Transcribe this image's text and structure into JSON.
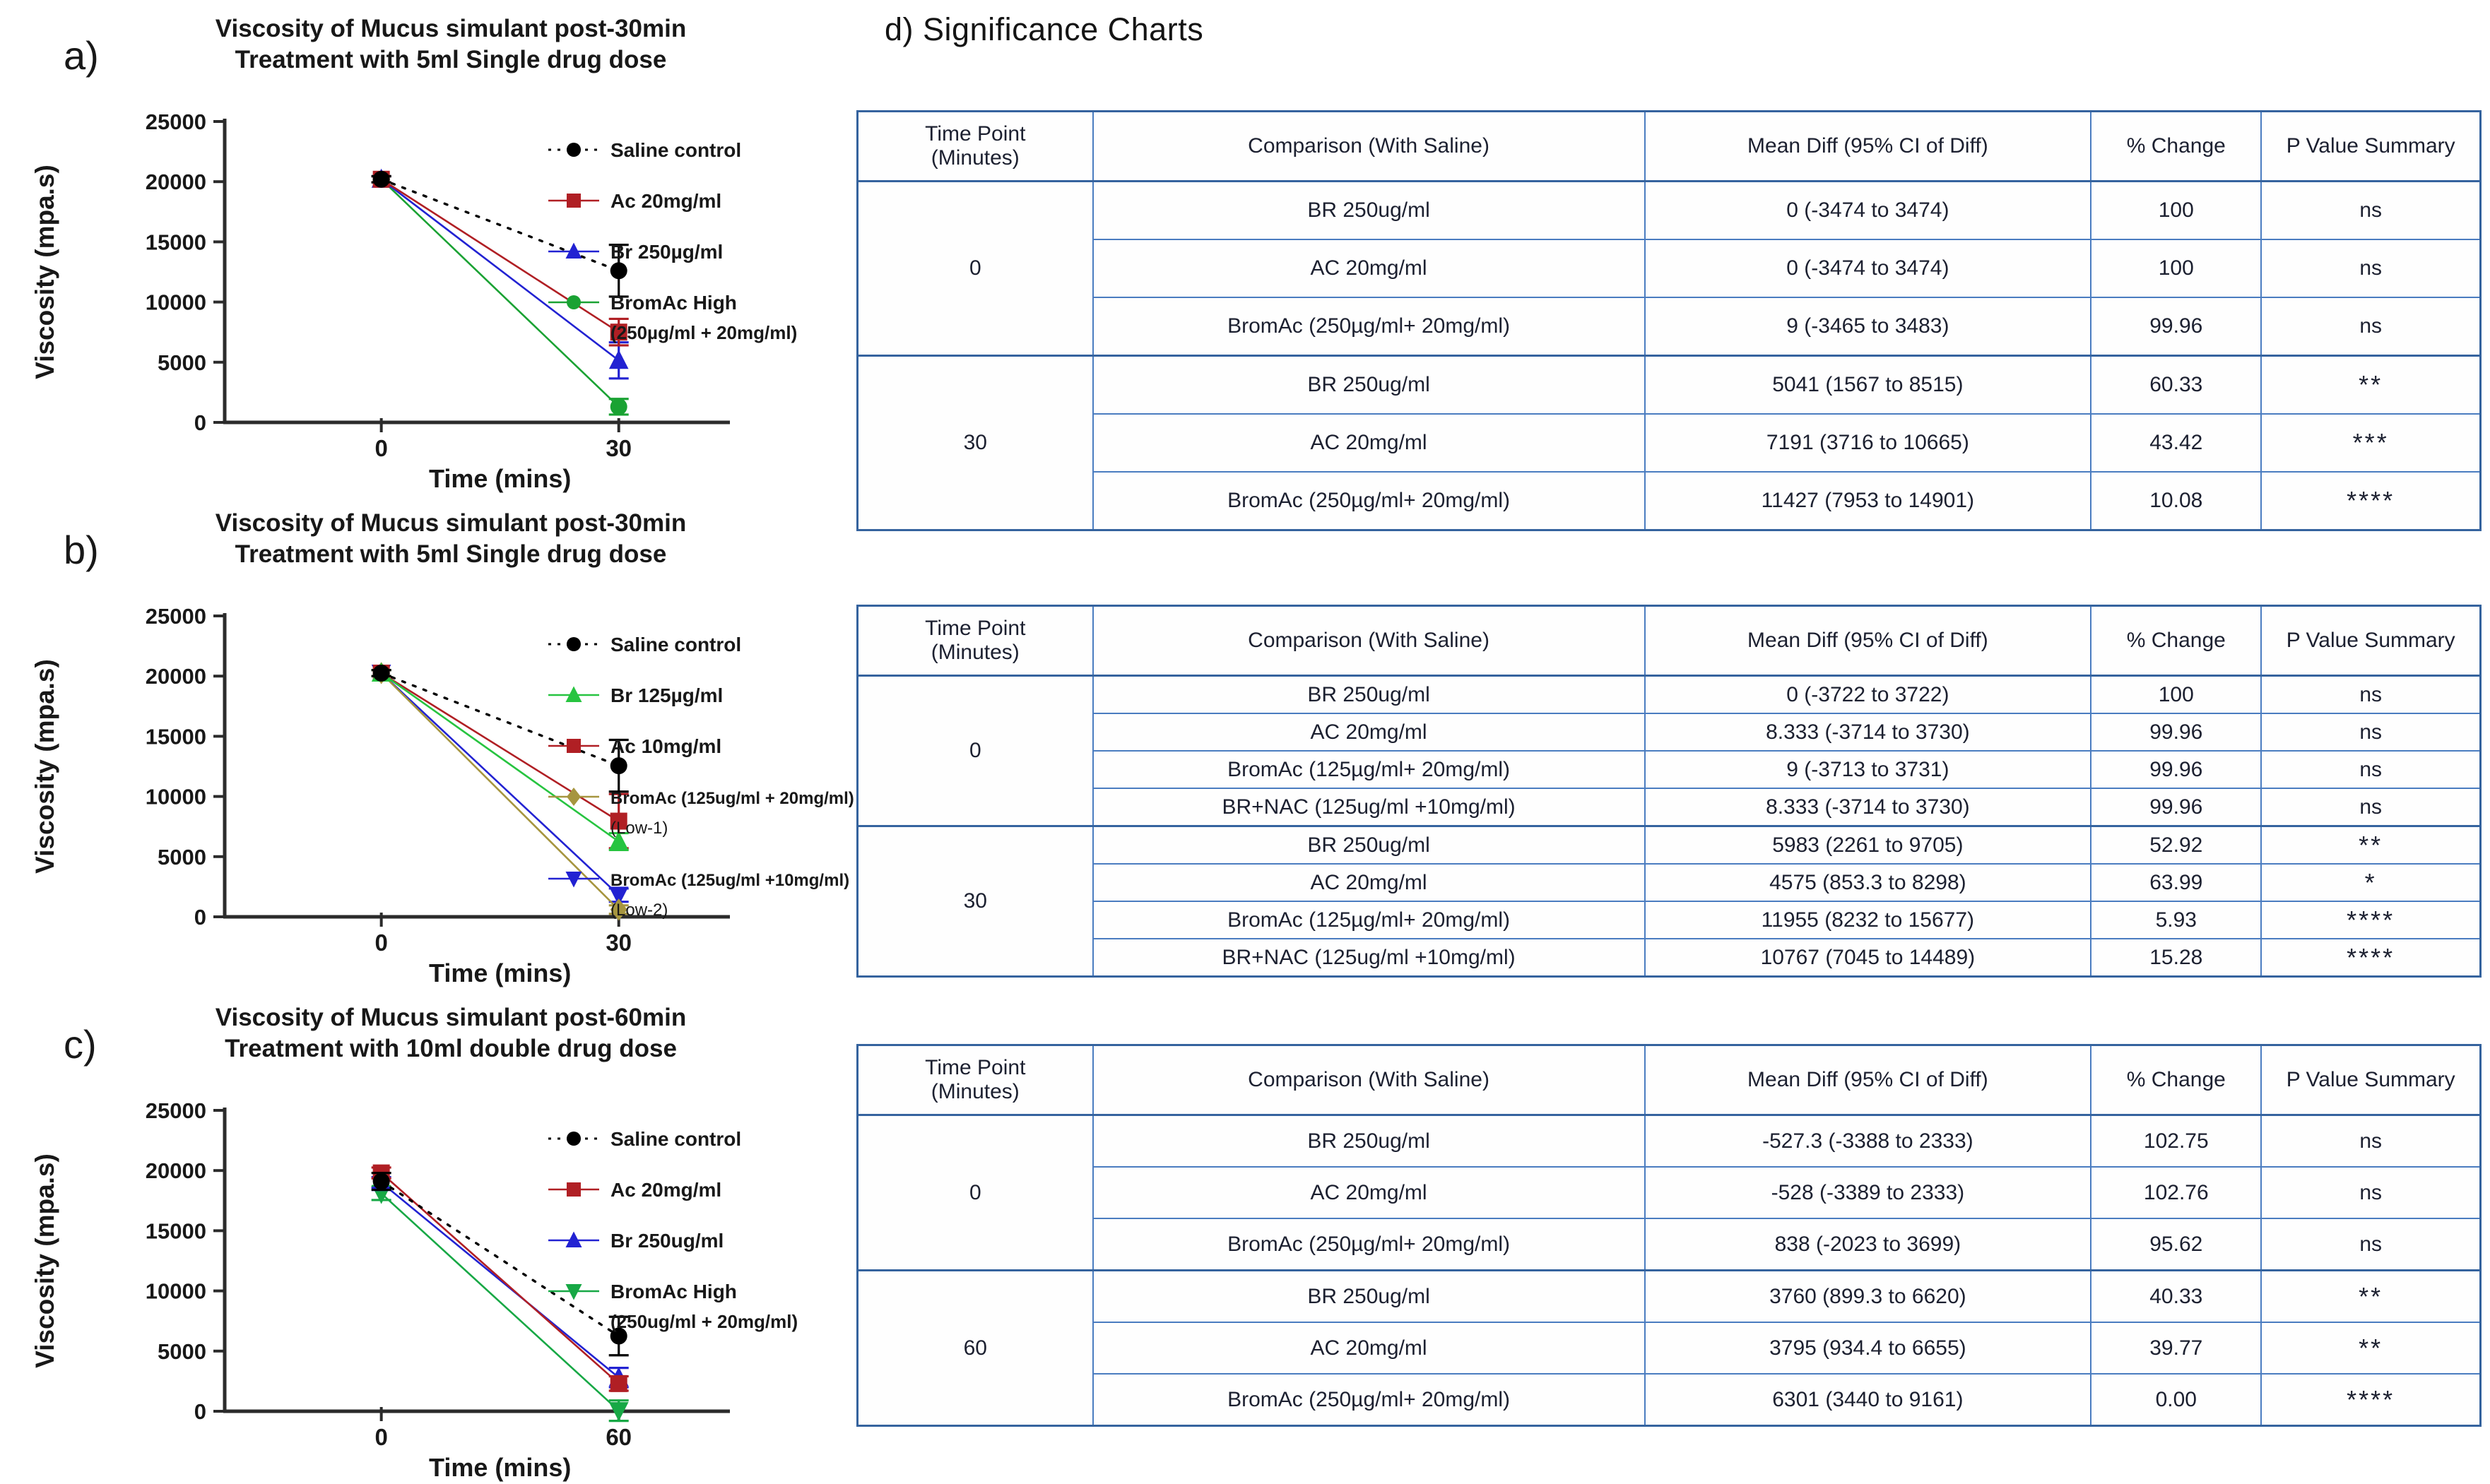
{
  "section_d_title": "d) Significance Charts",
  "palette": {
    "table_border": "#4a7cc0",
    "table_border_heavy": "#35639e",
    "axis_text": "#181818",
    "saline_black": "#000000",
    "ac_red": "#b01f24",
    "br_blue": "#2222d2",
    "bromac_green": "#1aa233",
    "br_green_bright": "#27c440",
    "bromac_olive": "#a6953f",
    "bromac_green_dark": "#17a845"
  },
  "chart_data": [
    {
      "type": "line",
      "panel_label": "a)",
      "title_lines": [
        "Viscosity of Mucus simulant post-30min",
        "Treatment with 5ml Single drug dose"
      ],
      "xlabel": "Time (mins)",
      "ylabel": "Viscosity (mpa.s)",
      "ylim": [
        0,
        25000
      ],
      "yticks": [
        0,
        5000,
        10000,
        15000,
        20000,
        25000
      ],
      "x": [
        0,
        30
      ],
      "x_tick_labels": [
        "0",
        "30"
      ],
      "grid": false,
      "legend_position": "right",
      "series": [
        {
          "name": "Saline control",
          "legend_lines": [
            "Saline control"
          ],
          "color": "#000000",
          "marker": "circle",
          "line_style": "dashed",
          "values": [
            20200,
            12600
          ],
          "errors": [
            250,
            2150
          ]
        },
        {
          "name": "Ac 20mg/ml",
          "legend_lines": [
            "Ac 20mg/ml"
          ],
          "color": "#b01f24",
          "marker": "square",
          "line_style": "solid",
          "values": [
            20200,
            7500
          ],
          "errors": [
            250,
            1100
          ]
        },
        {
          "name": "Br 250µg/ml",
          "legend_lines": [
            "Br 250µg/ml"
          ],
          "color": "#2222d2",
          "marker": "triangle-up",
          "line_style": "solid",
          "values": [
            20200,
            5150
          ],
          "errors": [
            250,
            1500
          ]
        },
        {
          "name": "BromAc High (250µg/ml + 20mg/ml)",
          "legend_lines": [
            "BromAc High",
            "(250µg/ml + 20mg/ml)"
          ],
          "color": "#1aa233",
          "marker": "circle",
          "line_style": "solid",
          "values": [
            20200,
            1300
          ],
          "errors": [
            250,
            650
          ]
        }
      ]
    },
    {
      "type": "line",
      "panel_label": "b)",
      "title_lines": [
        "Viscosity of Mucus simulant post-30min",
        "Treatment with 5ml Single drug dose"
      ],
      "xlabel": "Time (mins)",
      "ylabel": "Viscosity (mpa.s)",
      "ylim": [
        0,
        25000
      ],
      "yticks": [
        0,
        5000,
        10000,
        15000,
        20000,
        25000
      ],
      "x": [
        0,
        30
      ],
      "x_tick_labels": [
        "0",
        "30"
      ],
      "grid": false,
      "legend_position": "right",
      "series": [
        {
          "name": "Saline control",
          "legend_lines": [
            "Saline control"
          ],
          "color": "#000000",
          "marker": "circle",
          "line_style": "dashed",
          "values": [
            20250,
            12550
          ],
          "errors": [
            250,
            2150
          ]
        },
        {
          "name": "Br 125µg/ml",
          "legend_lines": [
            "Br 125µg/ml"
          ],
          "color": "#27c440",
          "marker": "triangle-up",
          "line_style": "solid",
          "values": [
            20250,
            6250
          ],
          "errors": [
            250,
            700
          ]
        },
        {
          "name": "Ac 10mg/ml",
          "legend_lines": [
            "Ac 10mg/ml"
          ],
          "color": "#b01f24",
          "marker": "square",
          "line_style": "solid",
          "values": [
            20250,
            7950
          ],
          "errors": [
            250,
            2250
          ]
        },
        {
          "name": "BromAc (125ug/ml + 20mg/ml) (Low-1)",
          "legend_lines": [
            "BromAc (125ug/ml + 20mg/ml)",
            "(Low-1)"
          ],
          "color": "#a6953f",
          "marker": "diamond",
          "line_style": "solid",
          "values": [
            20250,
            600
          ],
          "errors": [
            250,
            350
          ]
        },
        {
          "name": "BromAc (125ug/ml +10mg/ml) (Low-2)",
          "legend_lines": [
            "BromAc (125ug/ml +10mg/ml)",
            "(Low-2)"
          ],
          "color": "#2222d2",
          "marker": "triangle-down",
          "line_style": "solid",
          "values": [
            20250,
            1800
          ],
          "errors": [
            250,
            550
          ]
        }
      ]
    },
    {
      "type": "line",
      "panel_label": "c)",
      "title_lines": [
        "Viscosity of Mucus simulant post-60min",
        "Treatment with 10ml double drug dose"
      ],
      "xlabel": "Time (mins)",
      "ylabel": "Viscosity (mpa.s)",
      "ylim": [
        0,
        25000
      ],
      "yticks": [
        0,
        5000,
        10000,
        15000,
        20000,
        25000
      ],
      "x": [
        0,
        60
      ],
      "x_tick_labels": [
        "0",
        "60"
      ],
      "grid": false,
      "legend_position": "right",
      "series": [
        {
          "name": "Saline control",
          "legend_lines": [
            "Saline control"
          ],
          "color": "#000000",
          "marker": "circle",
          "line_style": "dashed",
          "values": [
            19100,
            6250
          ],
          "errors": [
            700,
            1600
          ]
        },
        {
          "name": "Ac 20mg/ml",
          "legend_lines": [
            "Ac 20mg/ml"
          ],
          "color": "#b01f24",
          "marker": "square",
          "line_style": "solid",
          "values": [
            19800,
            2300
          ],
          "errors": [
            450,
            600
          ]
        },
        {
          "name": "Br 250ug/ml",
          "legend_lines": [
            "Br 250ug/ml"
          ],
          "color": "#2222d2",
          "marker": "triangle-up",
          "line_style": "solid",
          "values": [
            19000,
            2800
          ],
          "errors": [
            450,
            800
          ]
        },
        {
          "name": "BromAc High (250ug/ml + 20mg/ml)",
          "legend_lines": [
            "BromAc High",
            "(250ug/ml + 20mg/ml)"
          ],
          "color": "#17a845",
          "marker": "triangle-down",
          "line_style": "solid",
          "values": [
            18100,
            50
          ],
          "errors": [
            550,
            850
          ]
        }
      ]
    },
    {
      "type": "table",
      "headers": [
        [
          "Time Point",
          "(Minutes)"
        ],
        [
          "Comparison (With Saline)"
        ],
        [
          "Mean Diff (95% CI of Diff)"
        ],
        [
          "% Change"
        ],
        [
          "P Value  Summary"
        ]
      ],
      "groups": [
        {
          "time": "0",
          "rows": [
            {
              "comparison": "BR 250ug/ml",
              "mean_diff": "0 (-3474 to 3474)",
              "pct_change": "100",
              "p_summary": "ns"
            },
            {
              "comparison": "AC 20mg/ml",
              "mean_diff": "0 (-3474 to 3474)",
              "pct_change": "100",
              "p_summary": "ns"
            },
            {
              "comparison": "BromAc (250µg/ml+ 20mg/ml)",
              "mean_diff": "9 (-3465 to 3483)",
              "pct_change": "99.96",
              "p_summary": "ns"
            }
          ]
        },
        {
          "time": "30",
          "rows": [
            {
              "comparison": "BR 250ug/ml",
              "mean_diff": "5041 (1567 to 8515)",
              "pct_change": "60.33",
              "p_summary": "**"
            },
            {
              "comparison": "AC 20mg/ml",
              "mean_diff": "7191 (3716 to 10665)",
              "pct_change": "43.42",
              "p_summary": "***"
            },
            {
              "comparison": "BromAc (250µg/ml+ 20mg/ml)",
              "mean_diff": "11427 (7953 to 14901)",
              "pct_change": "10.08",
              "p_summary": "****"
            }
          ]
        }
      ]
    },
    {
      "type": "table",
      "headers": [
        [
          "Time Point",
          "(Minutes)"
        ],
        [
          "Comparison (With Saline)"
        ],
        [
          "Mean Diff (95% CI of Diff)"
        ],
        [
          "% Change"
        ],
        [
          "P Value  Summary"
        ]
      ],
      "groups": [
        {
          "time": "0",
          "rows": [
            {
              "comparison": "BR 250ug/ml",
              "mean_diff": "0 (-3722 to 3722)",
              "pct_change": "100",
              "p_summary": "ns"
            },
            {
              "comparison": "AC 20mg/ml",
              "mean_diff": "8.333 (-3714 to 3730)",
              "pct_change": "99.96",
              "p_summary": "ns"
            },
            {
              "comparison": "BromAc (125µg/ml+ 20mg/ml)",
              "mean_diff": "9 (-3713 to 3731)",
              "pct_change": "99.96",
              "p_summary": "ns"
            },
            {
              "comparison": "BR+NAC (125ug/ml +10mg/ml)",
              "mean_diff": "8.333 (-3714 to 3730)",
              "pct_change": "99.96",
              "p_summary": "ns"
            }
          ]
        },
        {
          "time": "30",
          "rows": [
            {
              "comparison": "BR 250ug/ml",
              "mean_diff": "5983 (2261 to 9705)",
              "pct_change": "52.92",
              "p_summary": "**"
            },
            {
              "comparison": "AC 20mg/ml",
              "mean_diff": "4575 (853.3 to 8298)",
              "pct_change": "63.99",
              "p_summary": "*"
            },
            {
              "comparison": "BromAc (125µg/ml+ 20mg/ml)",
              "mean_diff": "11955 (8232 to 15677)",
              "pct_change": "5.93",
              "p_summary": "****"
            },
            {
              "comparison": "BR+NAC (125ug/ml +10mg/ml)",
              "mean_diff": "10767 (7045 to 14489)",
              "pct_change": "15.28",
              "p_summary": "****"
            }
          ]
        }
      ]
    },
    {
      "type": "table",
      "headers": [
        [
          "Time Point",
          "(Minutes)"
        ],
        [
          "Comparison (With Saline)"
        ],
        [
          "Mean Diff (95% CI of Diff)"
        ],
        [
          "% Change"
        ],
        [
          "P Value  Summary"
        ]
      ],
      "groups": [
        {
          "time": "0",
          "rows": [
            {
              "comparison": "BR 250ug/ml",
              "mean_diff": "-527.3 (-3388 to 2333)",
              "pct_change": "102.75",
              "p_summary": "ns"
            },
            {
              "comparison": "AC 20mg/ml",
              "mean_diff": "-528 (-3389 to 2333)",
              "pct_change": "102.76",
              "p_summary": "ns"
            },
            {
              "comparison": "BromAc (250µg/ml+ 20mg/ml)",
              "mean_diff": "838 (-2023 to 3699)",
              "pct_change": "95.62",
              "p_summary": "ns"
            }
          ]
        },
        {
          "time": "60",
          "rows": [
            {
              "comparison": "BR 250ug/ml",
              "mean_diff": "3760 (899.3 to 6620)",
              "pct_change": "40.33",
              "p_summary": "**"
            },
            {
              "comparison": "AC 20mg/ml",
              "mean_diff": "3795 (934.4 to 6655)",
              "pct_change": "39.77",
              "p_summary": "**"
            },
            {
              "comparison": "BromAc (250µg/ml+ 20mg/ml)",
              "mean_diff": "6301 (3440 to 9161)",
              "pct_change": "0.00",
              "p_summary": "****"
            }
          ]
        }
      ]
    }
  ]
}
